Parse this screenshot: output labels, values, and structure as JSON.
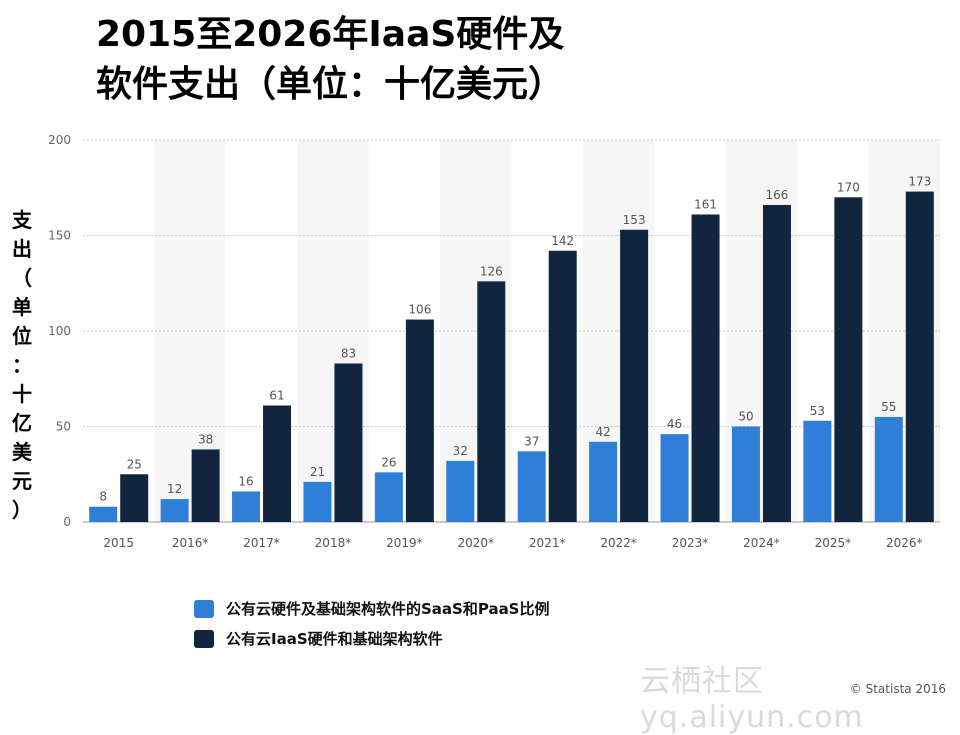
{
  "chart_data": {
    "type": "bar",
    "title_lines": [
      "2015至2026年IaaS硬件及",
      "软件支出（单位：十亿美元）"
    ],
    "ylabel": "支出\n（\n单\n位\n：\n十\n亿\n美\n元\n）",
    "categories": [
      "2015",
      "2016*",
      "2017*",
      "2018*",
      "2019*",
      "2020*",
      "2021*",
      "2022*",
      "2023*",
      "2024*",
      "2025*",
      "2026*"
    ],
    "series": [
      {
        "name": "公有云硬件及基础架构软件的SaaS和PaaS比例",
        "color": "#2f7ed8",
        "values": [
          8,
          12,
          16,
          21,
          26,
          32,
          37,
          42,
          46,
          50,
          53,
          55
        ]
      },
      {
        "name": "公有云IaaS硬件和基础架构软件",
        "color": "#11253f",
        "values": [
          25,
          38,
          61,
          83,
          106,
          126,
          142,
          153,
          161,
          166,
          170,
          173
        ]
      }
    ],
    "ylim": [
      0,
      200
    ],
    "yticks": [
      0,
      50,
      100,
      150,
      200
    ],
    "grid": true,
    "legend_position": "bottom-left"
  },
  "watermark": "云栖社区 yq.aliyun.com",
  "credit": "© Statista 2016"
}
